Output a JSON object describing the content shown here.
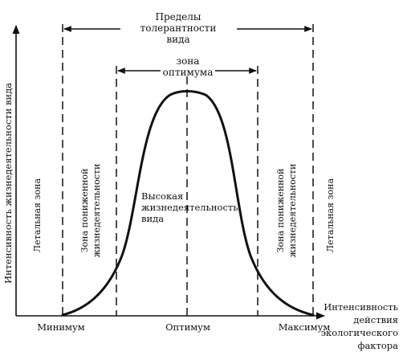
{
  "y_axis_label": "Интенсивность жизнедеятельности вида",
  "x_axis_label": [
    "Интенсивность",
    "действия",
    "экологического",
    "фактора"
  ],
  "tolerance_label": [
    "Пределы",
    "толерантности",
    "вида"
  ],
  "optimum_zone_label": [
    "зона",
    "оптимума"
  ],
  "high_activity_label": [
    "Высокая",
    "жизнедеятельность",
    "вида"
  ],
  "lethal_zone_left": "Летальная зона",
  "lethal_zone_right": "Летальная зона",
  "reduced_zone_left": [
    "Зона пониженной",
    "жизнедеятельности"
  ],
  "reduced_zone_right": [
    "Зона пониженной",
    "жизнедеятельности"
  ],
  "tick_labels": {
    "minimum": "Минимум",
    "optimum": "Оптимум",
    "maximum": "Максимум"
  },
  "colors": {
    "ink": "#111111",
    "background": "#ffffff"
  }
}
